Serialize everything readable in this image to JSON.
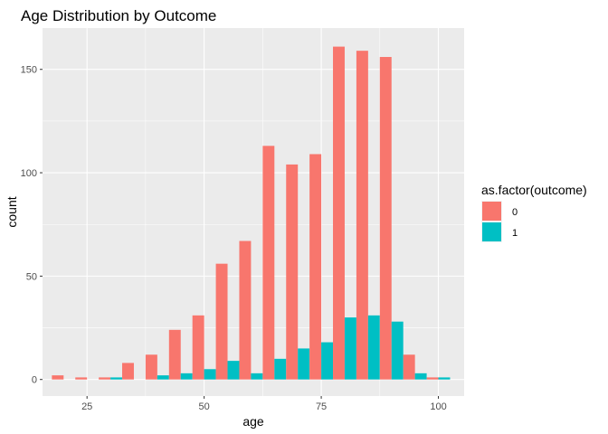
{
  "chart_data": {
    "type": "bar",
    "title": "Age Distribution by Outcome",
    "xlabel": "age",
    "ylabel": "count",
    "xlim": [
      15.5,
      105.5
    ],
    "ylim": [
      -8,
      170
    ],
    "x_ticks": [
      25,
      50,
      75,
      100
    ],
    "y_ticks": [
      0,
      50,
      100,
      150
    ],
    "bin_width": 5,
    "bin_centers": [
      20,
      25,
      30,
      35,
      40,
      45,
      50,
      55,
      60,
      65,
      70,
      75,
      80,
      85,
      90,
      95,
      100
    ],
    "grid": true,
    "legend_position": "right",
    "legend": {
      "title": "as.factor(outcome)",
      "entries": [
        "0",
        "1"
      ]
    },
    "series": [
      {
        "name": "0",
        "color": "#F8766D",
        "values": [
          2,
          1,
          1,
          8,
          12,
          24,
          31,
          56,
          67,
          113,
          104,
          109,
          161,
          159,
          156,
          12,
          1
        ]
      },
      {
        "name": "1",
        "color": "#00BFC4",
        "values": [
          0,
          0,
          1,
          0,
          2,
          3,
          5,
          9,
          3,
          10,
          15,
          18,
          30,
          31,
          28,
          3,
          1
        ]
      }
    ]
  }
}
